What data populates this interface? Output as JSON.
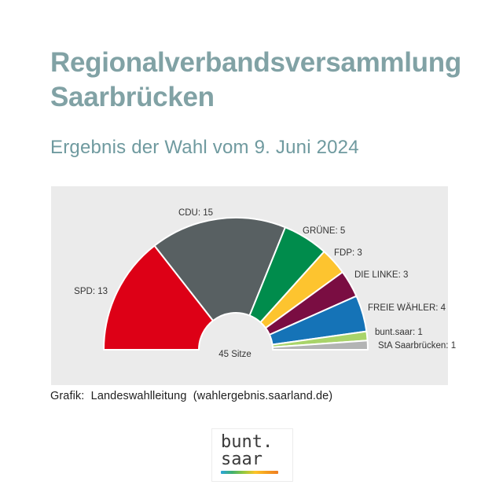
{
  "page": {
    "title_lines": [
      "Regionalverbandsversammlung",
      "Saarbrücken"
    ],
    "subtitle": "Ergebnis der Wahl vom 9. Juni 2024",
    "credit": "Grafik:  Landeswahlleitung  (wahlergebnis.saarland.de)"
  },
  "chart_data": {
    "type": "pie",
    "variant": "half-donut-hemicycle",
    "title": "",
    "total_seats": 45,
    "center_label": "45 Sitze",
    "label_format": "{name}: {seats}",
    "background_color": "#ebebeb",
    "slice_border_color": "#ffffff",
    "angle_range_deg": [
      180,
      0
    ],
    "series": [
      {
        "name": "SPD",
        "seats": 13,
        "color": "#dd0016"
      },
      {
        "name": "CDU",
        "seats": 15,
        "color": "#586062"
      },
      {
        "name": "GRÜNE",
        "seats": 5,
        "color": "#008c4c"
      },
      {
        "name": "FDP",
        "seats": 3,
        "color": "#fdc42f"
      },
      {
        "name": "DIE LINKE",
        "seats": 3,
        "color": "#7a0d42"
      },
      {
        "name": "FREIE WÄHLER",
        "seats": 4,
        "color": "#1573b7"
      },
      {
        "name": "bunt.saar",
        "seats": 1,
        "color": "#a9d46a"
      },
      {
        "name": "StA Saarbrücken",
        "seats": 1,
        "color": "#b3b4b4"
      }
    ]
  },
  "logo": {
    "line1": "bunt.",
    "line2": "saar",
    "text_color": "#3a3a3a",
    "gradient_colors": [
      "#2aa5dc",
      "#41b06e",
      "#96c93d",
      "#fdc428",
      "#f59e1f",
      "#ef7d23"
    ]
  }
}
